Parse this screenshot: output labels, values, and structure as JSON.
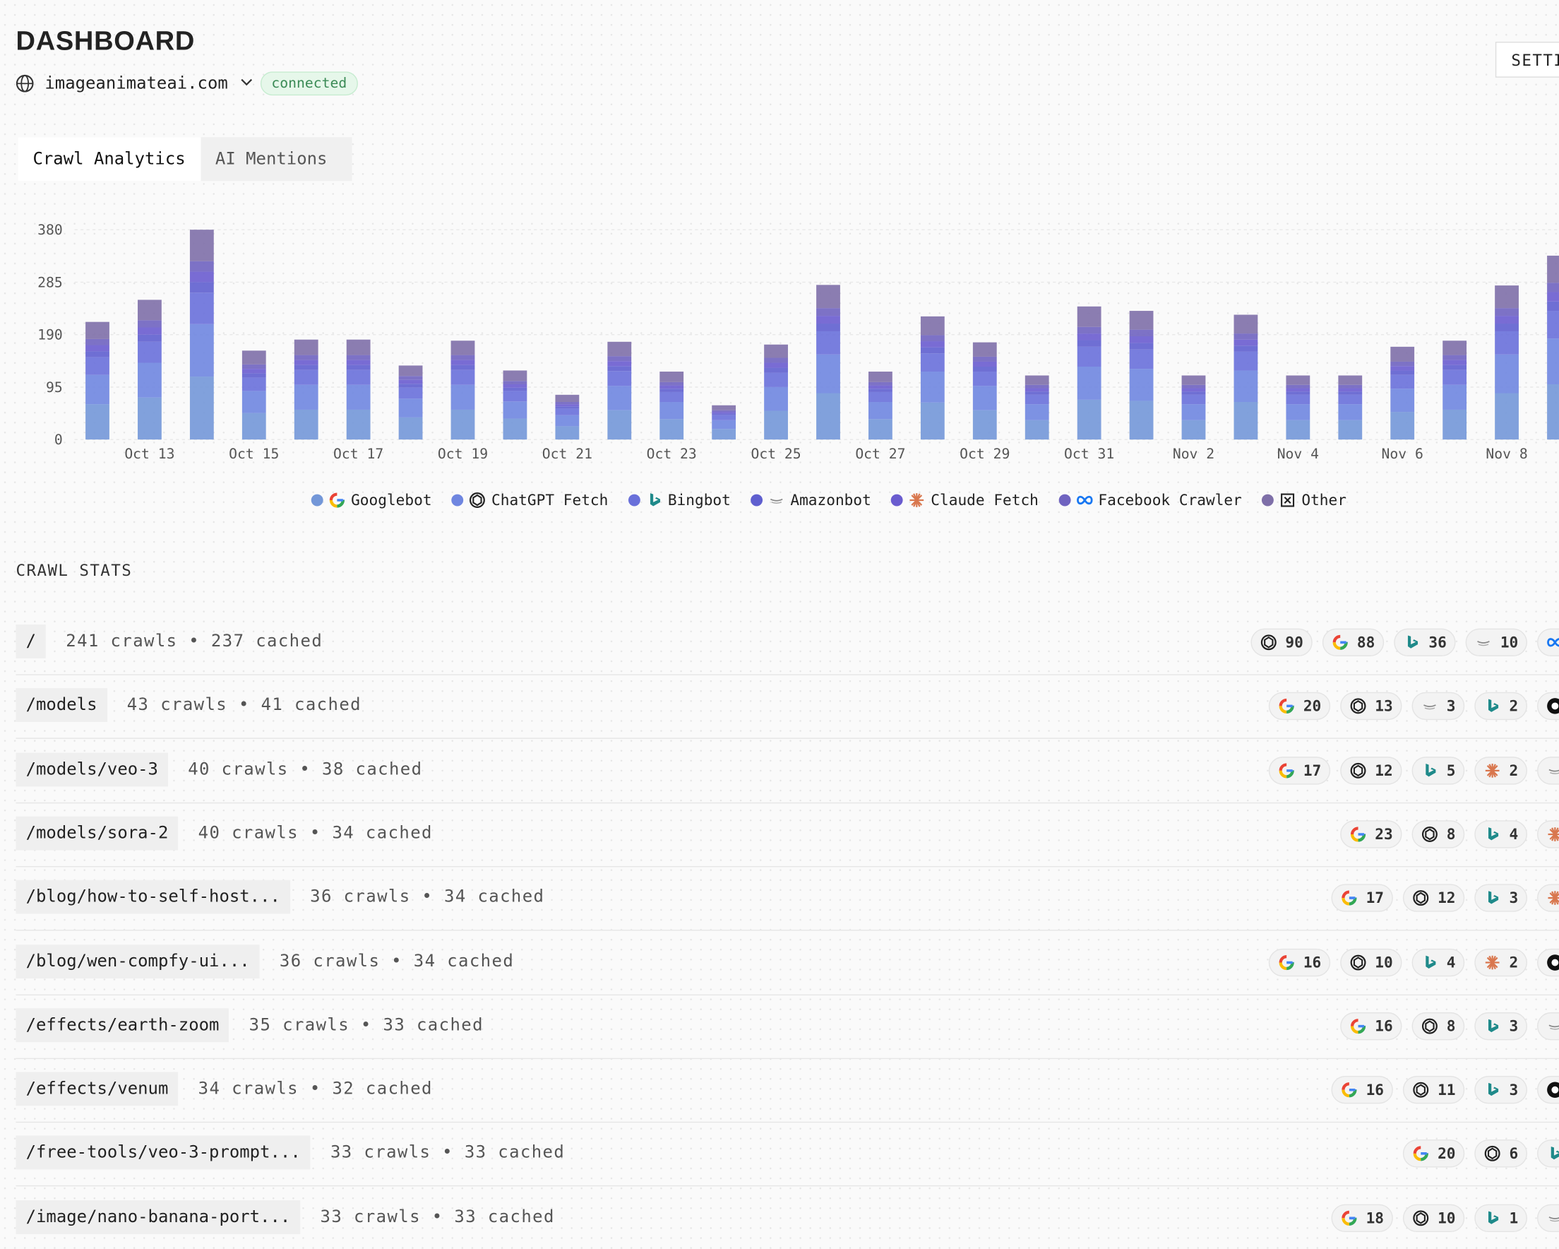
{
  "header": {
    "title": "DASHBOARD",
    "site": "imageanimateai.com",
    "status": "connected",
    "button": "SETTINGS"
  },
  "tabs": [
    "Crawl Analytics",
    "AI Mentions"
  ],
  "chart_data": {
    "type": "bar",
    "stacked": true,
    "categories": [
      null,
      "Oct 13",
      null,
      "Oct 15",
      null,
      "Oct 17",
      null,
      "Oct 19",
      null,
      "Oct 21",
      null,
      "Oct 23",
      null,
      "Oct 25",
      null,
      "Oct 27",
      null,
      "Oct 29",
      null,
      "Oct 31",
      null,
      "Nov 2",
      null,
      "Nov 4",
      null,
      "Nov 6",
      null,
      "Nov 8",
      null
    ],
    "ylim": [
      0,
      380
    ],
    "yticks": [
      0,
      95,
      190,
      285,
      380
    ],
    "grid": true,
    "legend": "bottom",
    "series": [
      {
        "name": "Googlebot",
        "icon": "google",
        "color": "#7397d8",
        "values": [
          64,
          76,
          114,
          48,
          54,
          54,
          40,
          54,
          38,
          24,
          53,
          37,
          19,
          52,
          84,
          37,
          67,
          53,
          35,
          72,
          70,
          35,
          68,
          35,
          35,
          50,
          54,
          84,
          100
        ]
      },
      {
        "name": "ChatGPT Fetch",
        "icon": "chatgpt",
        "color": "#6f86e0",
        "values": [
          53,
          63,
          95,
          40,
          45,
          45,
          34,
          45,
          31,
          20,
          44,
          31,
          16,
          43,
          70,
          31,
          56,
          44,
          29,
          60,
          58,
          29,
          57,
          29,
          29,
          42,
          45,
          70,
          83
        ]
      },
      {
        "name": "Bingbot",
        "icon": "bing",
        "color": "#6970da",
        "values": [
          32,
          38,
          57,
          24,
          27,
          27,
          20,
          27,
          19,
          12,
          27,
          18,
          9,
          26,
          42,
          18,
          33,
          26,
          17,
          36,
          35,
          17,
          34,
          17,
          17,
          25,
          27,
          42,
          50
        ]
      },
      {
        "name": "Amazonbot",
        "icon": "amazon",
        "color": "#5f5fcf",
        "values": [
          11,
          13,
          19,
          8,
          9,
          9,
          7,
          9,
          6,
          4,
          9,
          6,
          3,
          9,
          14,
          6,
          11,
          9,
          6,
          12,
          12,
          6,
          11,
          6,
          6,
          8,
          9,
          14,
          17
        ]
      },
      {
        "name": "Claude Fetch",
        "icon": "claude",
        "color": "#6a5ccf",
        "values": [
          11,
          13,
          19,
          8,
          9,
          9,
          7,
          9,
          6,
          4,
          9,
          6,
          3,
          9,
          14,
          6,
          11,
          9,
          6,
          12,
          12,
          6,
          11,
          6,
          6,
          8,
          9,
          14,
          17
        ]
      },
      {
        "name": "Facebook Crawler",
        "icon": "facebook",
        "color": "#6f63c0",
        "values": [
          11,
          13,
          19,
          8,
          9,
          9,
          7,
          9,
          6,
          4,
          9,
          6,
          3,
          9,
          14,
          6,
          11,
          9,
          6,
          12,
          12,
          6,
          11,
          6,
          6,
          8,
          9,
          14,
          17
        ]
      },
      {
        "name": "Other",
        "icon": "other",
        "color": "#7e6fa8",
        "values": [
          31,
          37,
          57,
          25,
          28,
          28,
          19,
          26,
          19,
          13,
          26,
          19,
          9,
          24,
          42,
          19,
          34,
          26,
          17,
          37,
          34,
          17,
          34,
          17,
          17,
          27,
          26,
          41,
          49
        ]
      }
    ]
  },
  "crawl_stats": {
    "title": "CRAWL STATS",
    "rows": [
      {
        "path": "/",
        "stats": "241 crawls • 237 cached",
        "badges": [
          {
            "icon": "chatgpt",
            "count": 90
          },
          {
            "icon": "google",
            "count": 88
          },
          {
            "icon": "bing",
            "count": 36
          },
          {
            "icon": "amazon",
            "count": 10
          },
          {
            "icon": "facebook"
          }
        ]
      },
      {
        "path": "/models",
        "stats": "43 crawls • 41 cached",
        "badges": [
          {
            "icon": "google",
            "count": 20
          },
          {
            "icon": "chatgpt",
            "count": 13
          },
          {
            "icon": "amazon",
            "count": 3
          },
          {
            "icon": "bing",
            "count": 2
          },
          {
            "icon": "dark"
          }
        ]
      },
      {
        "path": "/models/veo-3",
        "stats": "40 crawls • 38 cached",
        "badges": [
          {
            "icon": "google",
            "count": 17
          },
          {
            "icon": "chatgpt",
            "count": 12
          },
          {
            "icon": "bing",
            "count": 5
          },
          {
            "icon": "claude",
            "count": 2
          },
          {
            "icon": "amazon"
          }
        ]
      },
      {
        "path": "/models/sora-2",
        "stats": "40 crawls • 34 cached",
        "badges": [
          {
            "icon": "google",
            "count": 23
          },
          {
            "icon": "chatgpt",
            "count": 8
          },
          {
            "icon": "bing",
            "count": 4
          },
          {
            "icon": "claude"
          }
        ]
      },
      {
        "path": "/blog/how-to-self-host...",
        "stats": "36 crawls • 34 cached",
        "badges": [
          {
            "icon": "google",
            "count": 17
          },
          {
            "icon": "chatgpt",
            "count": 12
          },
          {
            "icon": "bing",
            "count": 3
          },
          {
            "icon": "claude"
          }
        ]
      },
      {
        "path": "/blog/wen-compfy-ui...",
        "stats": "36 crawls • 34 cached",
        "badges": [
          {
            "icon": "google",
            "count": 16
          },
          {
            "icon": "chatgpt",
            "count": 10
          },
          {
            "icon": "bing",
            "count": 4
          },
          {
            "icon": "claude",
            "count": 2
          },
          {
            "icon": "dark"
          }
        ]
      },
      {
        "path": "/effects/earth-zoom",
        "stats": "35 crawls • 33 cached",
        "badges": [
          {
            "icon": "google",
            "count": 16
          },
          {
            "icon": "chatgpt",
            "count": 8
          },
          {
            "icon": "bing",
            "count": 3
          },
          {
            "icon": "amazon"
          }
        ]
      },
      {
        "path": "/effects/venum",
        "stats": "34 crawls • 32 cached",
        "badges": [
          {
            "icon": "google",
            "count": 16
          },
          {
            "icon": "chatgpt",
            "count": 11
          },
          {
            "icon": "bing",
            "count": 3
          },
          {
            "icon": "dark"
          }
        ]
      },
      {
        "path": "/free-tools/veo-3-prompt...",
        "stats": "33 crawls • 33 cached",
        "badges": [
          {
            "icon": "google",
            "count": 20
          },
          {
            "icon": "chatgpt",
            "count": 6
          },
          {
            "icon": "bing"
          }
        ]
      },
      {
        "path": "/image/nano-banana-port...",
        "stats": "33 crawls • 33 cached",
        "badges": [
          {
            "icon": "google",
            "count": 18
          },
          {
            "icon": "chatgpt",
            "count": 10
          },
          {
            "icon": "bing",
            "count": 1
          },
          {
            "icon": "amazon"
          }
        ]
      }
    ]
  }
}
